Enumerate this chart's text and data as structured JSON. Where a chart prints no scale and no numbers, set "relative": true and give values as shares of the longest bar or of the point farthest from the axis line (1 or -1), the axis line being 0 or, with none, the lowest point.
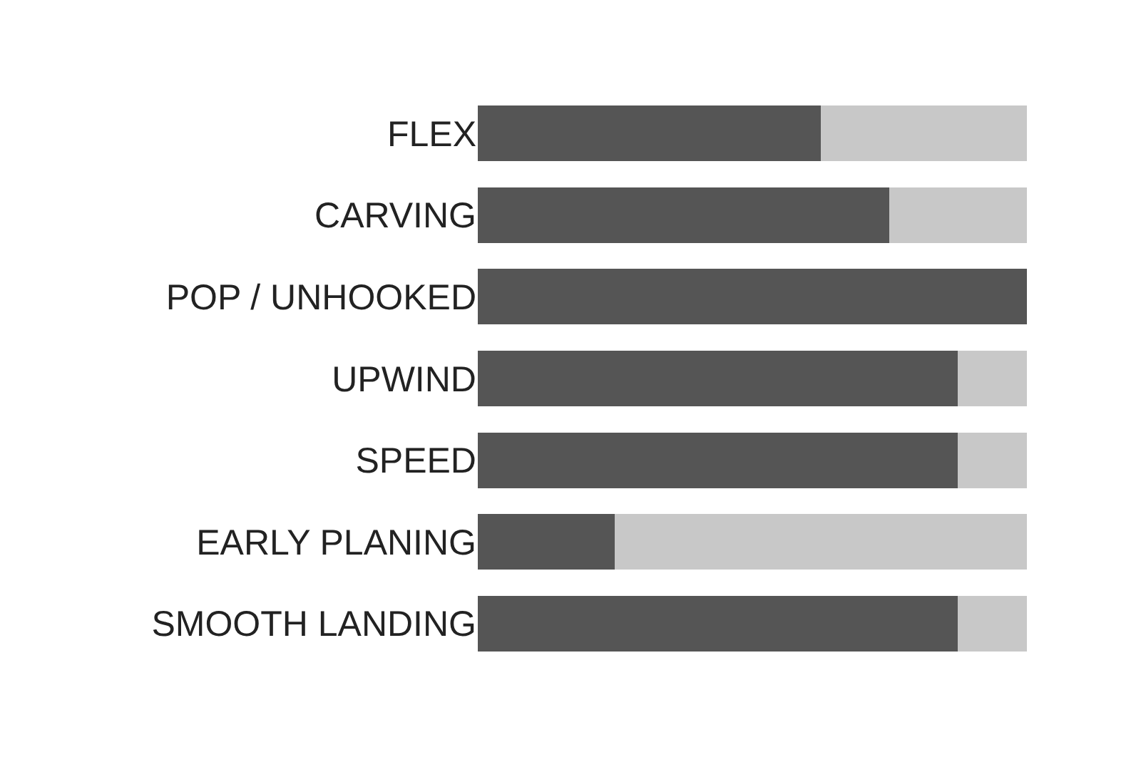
{
  "chart_data": {
    "type": "bar",
    "orientation": "horizontal",
    "stacked": true,
    "relative": true,
    "categories": [
      "FLEX",
      "CARVING",
      "POP / UNHOOKED",
      "UPWIND",
      "SPEED",
      "EARLY PLANING",
      "SMOOTH LANDING"
    ],
    "series": [
      {
        "color": "#555555",
        "values": [
          0.625,
          0.75,
          1,
          0.875,
          0.875,
          0.25,
          0.875
        ]
      },
      {
        "color": "#c8c8c8",
        "values": [
          0.375,
          0.25,
          0,
          0.125,
          0.125,
          0.75,
          0.125
        ]
      }
    ]
  }
}
